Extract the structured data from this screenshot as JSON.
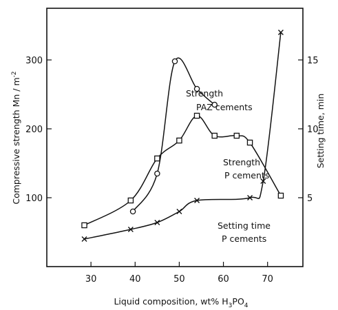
{
  "chart_data": {
    "type": "line",
    "title": "",
    "xlabel": {
      "text": "Liquid composition,  wt%  H",
      "sub": "3",
      "tail": "PO",
      "sub2": "4"
    },
    "ylabel_left": {
      "text": "Compressive strength Mn / m",
      "sup": "-2"
    },
    "ylabel_right": "Setting time,  min",
    "xlim": [
      20,
      78
    ],
    "ylim_left": [
      0,
      375
    ],
    "ylim_right": [
      0,
      18.75
    ],
    "x_ticks": [
      30,
      40,
      50,
      60,
      70
    ],
    "y_left_ticks": [
      100,
      200,
      300
    ],
    "y_right_ticks": [
      5,
      10,
      15
    ],
    "grid": false,
    "legend": "none",
    "series": [
      {
        "key": "paz",
        "axis": "left",
        "marker": "circle",
        "x": [
          39.5,
          45,
          49,
          54,
          58
        ],
        "y": [
          80,
          135,
          298,
          258,
          235
        ]
      },
      {
        "key": "p_strength",
        "axis": "left",
        "marker": "square",
        "x": [
          28.5,
          39,
          45,
          50,
          54,
          58,
          63,
          66,
          73
        ],
        "y": [
          60,
          96,
          157,
          183,
          219,
          190,
          190,
          180,
          103
        ]
      },
      {
        "key": "setting",
        "axis": "right",
        "marker": "cross",
        "x": [
          28.5,
          39,
          45,
          50,
          54,
          66,
          69,
          73
        ],
        "y": [
          2.0,
          2.7,
          3.2,
          4.0,
          4.8,
          5.0,
          6.2,
          17.0
        ]
      }
    ],
    "annotations": [
      {
        "name": "annotation-strength-paz",
        "lines": [
          "Strength",
          "PAZ cements"
        ]
      },
      {
        "name": "annotation-strength-p",
        "lines": [
          "Strength",
          "P cements"
        ]
      },
      {
        "name": "annotation-setting-time",
        "lines": [
          "Setting time",
          "P cements"
        ]
      }
    ]
  }
}
